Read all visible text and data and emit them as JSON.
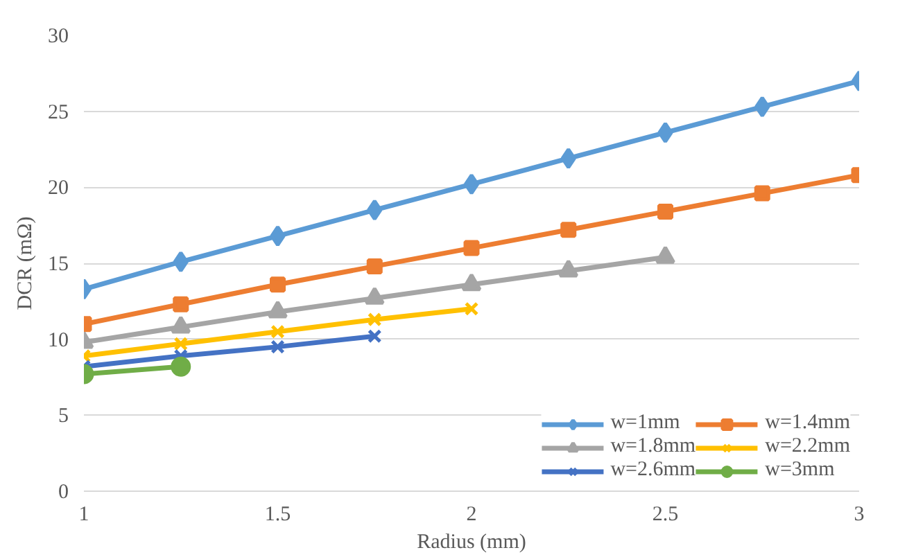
{
  "chart_data": {
    "type": "line",
    "xlabel": "Radius (mm)",
    "ylabel": "DCR (mΩ)",
    "x": [
      1,
      1.25,
      1.5,
      1.75,
      2,
      2.25,
      2.5,
      2.75,
      3
    ],
    "xlim": [
      1,
      3
    ],
    "xticks": [
      1,
      1.5,
      2,
      2.5,
      3
    ],
    "ylim": [
      0,
      30
    ],
    "yticks": [
      0,
      5,
      10,
      15,
      20,
      25,
      30
    ],
    "grid": "y",
    "legend": "bottom right",
    "series": [
      {
        "name": "w=1mm",
        "color": "#5b9bd5",
        "marker": "diamond",
        "values": [
          13.3,
          15.1,
          16.8,
          18.5,
          20.2,
          21.9,
          23.6,
          25.3,
          27.0
        ]
      },
      {
        "name": "w=1.4mm",
        "color": "#ed7d31",
        "marker": "square",
        "values": [
          11.0,
          12.3,
          13.6,
          14.8,
          16.0,
          17.2,
          18.4,
          19.6,
          20.8
        ]
      },
      {
        "name": "w=1.8mm",
        "color": "#a5a5a5",
        "marker": "triangle",
        "values": [
          9.8,
          10.8,
          11.8,
          12.7,
          13.6,
          14.5,
          15.4,
          null,
          null
        ]
      },
      {
        "name": "w=2.2mm",
        "color": "#ffc000",
        "marker": "cross",
        "values": [
          8.9,
          9.7,
          10.5,
          11.3,
          12.0,
          null,
          null,
          null,
          null
        ]
      },
      {
        "name": "w=2.6mm",
        "color": "#4472c4",
        "marker": "cross",
        "values": [
          8.2,
          8.9,
          9.5,
          10.2,
          null,
          null,
          null,
          null,
          null
        ]
      },
      {
        "name": "w=3mm",
        "color": "#70ad47",
        "marker": "circle",
        "values": [
          7.7,
          8.2,
          null,
          null,
          null,
          null,
          null,
          null,
          null
        ]
      }
    ]
  }
}
